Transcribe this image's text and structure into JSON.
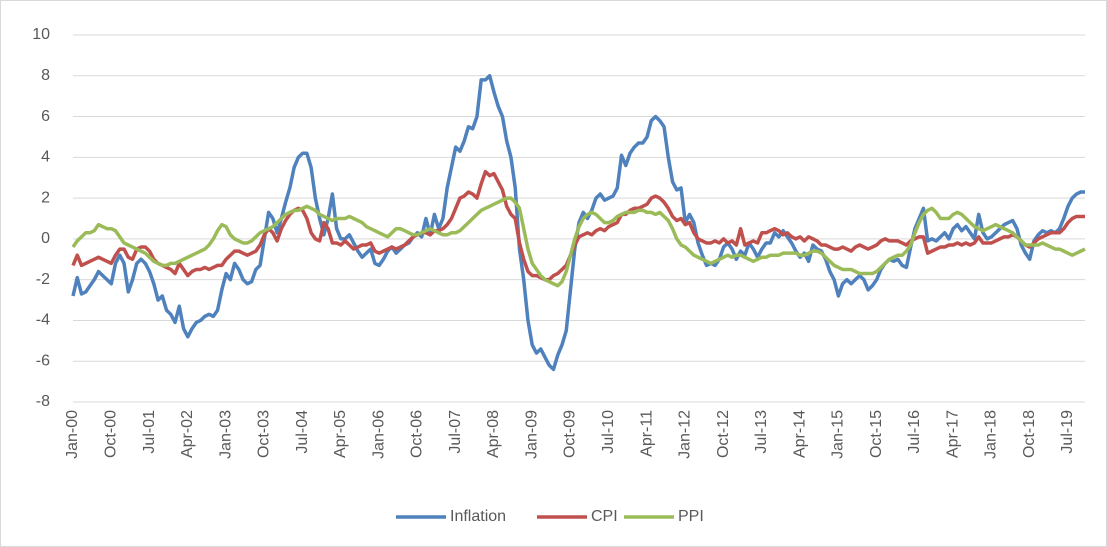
{
  "chart_data": {
    "type": "line",
    "categories": [
      "Jan-00",
      null,
      null,
      null,
      null,
      null,
      null,
      null,
      null,
      "Oct-00",
      null,
      null,
      null,
      null,
      null,
      null,
      null,
      null,
      "Jul-01",
      null,
      null,
      null,
      null,
      null,
      null,
      null,
      null,
      "Apr-02",
      null,
      null,
      null,
      null,
      null,
      null,
      null,
      null,
      "Jan-03",
      null,
      null,
      null,
      null,
      null,
      null,
      null,
      null,
      "Oct-03",
      null,
      null,
      null,
      null,
      null,
      null,
      null,
      null,
      "Jul-04",
      null,
      null,
      null,
      null,
      null,
      null,
      null,
      null,
      "Apr-05",
      null,
      null,
      null,
      null,
      null,
      null,
      null,
      null,
      "Jan-06",
      null,
      null,
      null,
      null,
      null,
      null,
      null,
      null,
      "Oct-06",
      null,
      null,
      null,
      null,
      null,
      null,
      null,
      null,
      "Jul-07",
      null,
      null,
      null,
      null,
      null,
      null,
      null,
      null,
      "Apr-08",
      null,
      null,
      null,
      null,
      null,
      null,
      null,
      null,
      "Jan-09",
      null,
      null,
      null,
      null,
      null,
      null,
      null,
      null,
      "Oct-09",
      null,
      null,
      null,
      null,
      null,
      null,
      null,
      null,
      "Jul-10",
      null,
      null,
      null,
      null,
      null,
      null,
      null,
      null,
      "Apr-11",
      null,
      null,
      null,
      null,
      null,
      null,
      null,
      null,
      "Jan-12",
      null,
      null,
      null,
      null,
      null,
      null,
      null,
      null,
      "Oct-12",
      null,
      null,
      null,
      null,
      null,
      null,
      null,
      null,
      "Jul-13",
      null,
      null,
      null,
      null,
      null,
      null,
      null,
      null,
      "Apr-14",
      null,
      null,
      null,
      null,
      null,
      null,
      null,
      null,
      "Jan-15",
      null,
      null,
      null,
      null,
      null,
      null,
      null,
      null,
      "Oct-15",
      null,
      null,
      null,
      null,
      null,
      null,
      null,
      null,
      "Jul-16",
      null,
      null,
      null,
      null,
      null,
      null,
      null,
      null,
      "Apr-17",
      null,
      null,
      null,
      null,
      null,
      null,
      null,
      null,
      "Jan-18",
      null,
      null,
      null,
      null,
      null,
      null,
      null,
      null,
      "Oct-18",
      null,
      null,
      null,
      null,
      null,
      null,
      null,
      null,
      "Jul-19",
      null,
      null,
      null,
      null
    ],
    "series": [
      {
        "name": "Inflation",
        "color": "#4f81bd",
        "values": [
          -2.8,
          -1.9,
          -2.7,
          -2.6,
          -2.3,
          -2.0,
          -1.6,
          -1.8,
          -2.0,
          -2.2,
          -1.2,
          -0.8,
          -1.2,
          -2.6,
          -2.0,
          -1.2,
          -1.0,
          -1.2,
          -1.6,
          -2.2,
          -3.0,
          -2.8,
          -3.5,
          -3.7,
          -4.1,
          -3.3,
          -4.4,
          -4.8,
          -4.4,
          -4.1,
          -4.0,
          -3.8,
          -3.7,
          -3.8,
          -3.5,
          -2.5,
          -1.7,
          -2.0,
          -1.2,
          -1.5,
          -2.0,
          -2.2,
          -2.1,
          -1.5,
          -1.3,
          0,
          1.3,
          1.0,
          0.3,
          1.0,
          1.8,
          2.5,
          3.5,
          4.0,
          4.2,
          4.2,
          3.5,
          2.0,
          1.0,
          0.2,
          1.0,
          2.2,
          0.5,
          0,
          0,
          0.2,
          -0.2,
          -0.6,
          -0.9,
          -0.7,
          -0.5,
          -1.2,
          -1.3,
          -1.0,
          -0.6,
          -0.4,
          -0.7,
          -0.5,
          -0.3,
          -0.2,
          0.1,
          0.3,
          0.1,
          1.0,
          0.2,
          1.2,
          0.5,
          1.0,
          2.5,
          3.5,
          4.5,
          4.3,
          4.8,
          5.5,
          5.4,
          6.0,
          7.8,
          7.8,
          8.0,
          7.2,
          6.5,
          6.0,
          4.8,
          4.0,
          2.5,
          -0.5,
          -2.0,
          -4.0,
          -5.2,
          -5.6,
          -5.4,
          -5.8,
          -6.2,
          -6.4,
          -5.7,
          -5.2,
          -4.5,
          -2.5,
          -0.5,
          0.8,
          1.3,
          1.0,
          1.4,
          2.0,
          2.2,
          1.9,
          2.0,
          2.1,
          2.5,
          4.1,
          3.6,
          4.2,
          4.5,
          4.7,
          4.7,
          5.0,
          5.8,
          6.0,
          5.8,
          5.5,
          4.0,
          2.8,
          2.4,
          2.5,
          0.8,
          1.2,
          0.8,
          -0.2,
          -0.8,
          -1.3,
          -1.2,
          -1.3,
          -1.0,
          -0.4,
          -0.2,
          -0.5,
          -1.0,
          -0.6,
          -0.8,
          -0.2,
          -0.5,
          -0.9,
          -0.5,
          -0.2,
          -0.2,
          0.3,
          0.1,
          0.4,
          0.1,
          -0.2,
          -0.6,
          -0.9,
          -0.7,
          -1.1,
          -0.3,
          -0.5,
          -0.6,
          -1.0,
          -1.6,
          -2.0,
          -2.8,
          -2.2,
          -2.0,
          -2.2,
          -2.0,
          -1.8,
          -2.0,
          -2.5,
          -2.3,
          -2.0,
          -1.5,
          -1.2,
          -1.0,
          -1.1,
          -1.0,
          -1.3,
          -1.4,
          -0.4,
          0.5,
          1.0,
          1.5,
          -0.1,
          0,
          -0.1,
          0.1,
          0.3,
          0,
          0.5,
          0.7,
          0.4,
          0.6,
          0.3,
          0,
          1.2,
          0.3,
          0,
          0.1,
          0.3,
          0.5,
          0.7,
          0.8,
          0.9,
          0.5,
          -0.3,
          -0.7,
          -1.0,
          -0.1,
          0.2,
          0.4,
          0.3,
          0.4,
          0.3,
          0.5,
          1.0,
          1.6,
          2.0,
          2.2,
          2.3,
          2.3
        ]
      },
      {
        "name": "CPI",
        "color": "#c0504d",
        "values": [
          -1.3,
          -0.8,
          -1.3,
          -1.2,
          -1.1,
          -1.0,
          -0.9,
          -1.0,
          -1.1,
          -1.2,
          -0.8,
          -0.5,
          -0.5,
          -0.9,
          -1.0,
          -0.5,
          -0.4,
          -0.4,
          -0.6,
          -1.0,
          -1.2,
          -1.3,
          -1.4,
          -1.5,
          -1.7,
          -1.2,
          -1.5,
          -1.8,
          -1.6,
          -1.5,
          -1.5,
          -1.4,
          -1.5,
          -1.4,
          -1.3,
          -1.3,
          -1.0,
          -0.8,
          -0.6,
          -0.6,
          -0.7,
          -0.8,
          -0.7,
          -0.6,
          -0.3,
          0.2,
          0.5,
          0.3,
          -0.1,
          0.5,
          0.9,
          1.2,
          1.4,
          1.5,
          1.4,
          1.0,
          0.3,
          0,
          -0.1,
          0.8,
          0.5,
          -0.2,
          -0.2,
          -0.3,
          -0.1,
          -0.3,
          -0.5,
          -0.4,
          -0.3,
          -0.3,
          -0.2,
          -0.6,
          -0.7,
          -0.6,
          -0.5,
          -0.4,
          -0.5,
          -0.4,
          -0.3,
          -0.1,
          0.1,
          0.2,
          0.3,
          0.3,
          0.2,
          0.4,
          0.4,
          0.5,
          0.7,
          1.0,
          1.5,
          2.0,
          2.1,
          2.3,
          2.2,
          2.0,
          2.7,
          3.3,
          3.1,
          3.2,
          2.8,
          2.4,
          1.6,
          1.2,
          1.0,
          -0.2,
          -1.0,
          -1.6,
          -1.8,
          -1.8,
          -1.9,
          -2.0,
          -2.0,
          -1.8,
          -1.7,
          -1.5,
          -1.3,
          -0.8,
          -0.3,
          0.1,
          0.2,
          0.3,
          0.2,
          0.4,
          0.5,
          0.4,
          0.6,
          0.7,
          0.8,
          1.2,
          1.2,
          1.4,
          1.5,
          1.5,
          1.6,
          1.7,
          2.0,
          2.1,
          2.0,
          1.8,
          1.5,
          1.1,
          0.9,
          1.0,
          0.7,
          0.8,
          0.3,
          0,
          -0.1,
          -0.2,
          -0.2,
          -0.1,
          -0.2,
          0,
          -0.2,
          -0.1,
          -0.3,
          0.5,
          -0.3,
          -0.2,
          -0.1,
          -0.2,
          0.3,
          0.3,
          0.4,
          0.5,
          0.4,
          0.2,
          0.3,
          0.1,
          0,
          0.1,
          -0.1,
          0.1,
          0,
          -0.1,
          -0.3,
          -0.3,
          -0.4,
          -0.5,
          -0.5,
          -0.4,
          -0.5,
          -0.6,
          -0.4,
          -0.3,
          -0.4,
          -0.5,
          -0.4,
          -0.3,
          -0.1,
          0,
          -0.1,
          -0.1,
          -0.1,
          -0.2,
          -0.3,
          -0.1,
          0,
          0.1,
          0.1,
          -0.7,
          -0.6,
          -0.5,
          -0.4,
          -0.4,
          -0.3,
          -0.3,
          -0.2,
          -0.3,
          -0.2,
          -0.3,
          -0.2,
          0.1,
          -0.2,
          -0.2,
          -0.2,
          -0.1,
          0,
          0.1,
          0.1,
          0.2,
          0.1,
          -0.1,
          -0.3,
          -0.4,
          -0.2,
          0,
          0.1,
          0.2,
          0.3,
          0.3,
          0.3,
          0.5,
          0.8,
          1.0,
          1.1,
          1.1,
          1.1
        ]
      },
      {
        "name": "PPI",
        "color": "#9bbb59",
        "values": [
          -0.4,
          -0.1,
          0.1,
          0.3,
          0.3,
          0.4,
          0.7,
          0.6,
          0.5,
          0.5,
          0.4,
          0.1,
          -0.2,
          -0.3,
          -0.4,
          -0.5,
          -0.6,
          -0.7,
          -0.9,
          -1.1,
          -1.2,
          -1.3,
          -1.3,
          -1.2,
          -1.2,
          -1.1,
          -1.0,
          -0.9,
          -0.8,
          -0.7,
          -0.6,
          -0.5,
          -0.3,
          0,
          0.4,
          0.7,
          0.6,
          0.2,
          0,
          -0.1,
          -0.2,
          -0.2,
          -0.1,
          0.1,
          0.3,
          0.4,
          0.5,
          0.6,
          0.8,
          1.0,
          1.2,
          1.3,
          1.4,
          1.4,
          1.5,
          1.6,
          1.5,
          1.4,
          1.2,
          1.1,
          1.0,
          0.9,
          1.0,
          1.0,
          1.0,
          1.1,
          1.0,
          0.9,
          0.8,
          0.6,
          0.5,
          0.4,
          0.3,
          0.2,
          0.1,
          0.3,
          0.5,
          0.5,
          0.4,
          0.3,
          0.2,
          0.2,
          0.3,
          0.4,
          0.5,
          0.4,
          0.3,
          0.2,
          0.2,
          0.3,
          0.3,
          0.4,
          0.6,
          0.8,
          1.0,
          1.2,
          1.4,
          1.5,
          1.6,
          1.7,
          1.8,
          1.9,
          2.0,
          2.0,
          1.8,
          1.5,
          0.5,
          -0.5,
          -1.2,
          -1.5,
          -1.8,
          -2.0,
          -2.1,
          -2.2,
          -2.3,
          -2.1,
          -1.6,
          -0.8,
          0,
          0.6,
          1.0,
          1.2,
          1.3,
          1.2,
          1.0,
          0.8,
          0.8,
          0.9,
          1.1,
          1.2,
          1.3,
          1.3,
          1.3,
          1.4,
          1.4,
          1.3,
          1.3,
          1.2,
          1.3,
          1.1,
          0.9,
          0.5,
          0,
          -0.3,
          -0.4,
          -0.6,
          -0.8,
          -0.9,
          -1.0,
          -1.1,
          -1.2,
          -1.1,
          -1.0,
          -0.9,
          -0.8,
          -0.9,
          -0.8,
          -0.8,
          -0.9,
          -1.0,
          -1.1,
          -1.0,
          -0.9,
          -0.9,
          -0.8,
          -0.8,
          -0.8,
          -0.7,
          -0.7,
          -0.7,
          -0.7,
          -0.8,
          -0.8,
          -0.7,
          -0.6,
          -0.6,
          -0.7,
          -0.9,
          -1.1,
          -1.3,
          -1.4,
          -1.5,
          -1.5,
          -1.5,
          -1.6,
          -1.7,
          -1.7,
          -1.7,
          -1.7,
          -1.6,
          -1.4,
          -1.2,
          -1.0,
          -0.9,
          -0.8,
          -0.8,
          -0.6,
          -0.3,
          0.3,
          0.8,
          1.2,
          1.4,
          1.5,
          1.3,
          1.0,
          1.0,
          1.0,
          1.2,
          1.3,
          1.2,
          1.0,
          0.8,
          0.6,
          0.5,
          0.4,
          0.5,
          0.6,
          0.7,
          0.6,
          0.5,
          0.4,
          0.3,
          0.1,
          -0.1,
          -0.3,
          -0.3,
          -0.3,
          -0.3,
          -0.2,
          -0.3,
          -0.4,
          -0.5,
          -0.5,
          -0.6,
          -0.7,
          -0.8,
          -0.7,
          -0.6,
          -0.5
        ]
      }
    ],
    "ylim": [
      -8,
      10
    ],
    "yticks": [
      -8,
      -6,
      -4,
      -2,
      0,
      2,
      4,
      6,
      8,
      10
    ],
    "grid": true,
    "legend": "bottom"
  }
}
